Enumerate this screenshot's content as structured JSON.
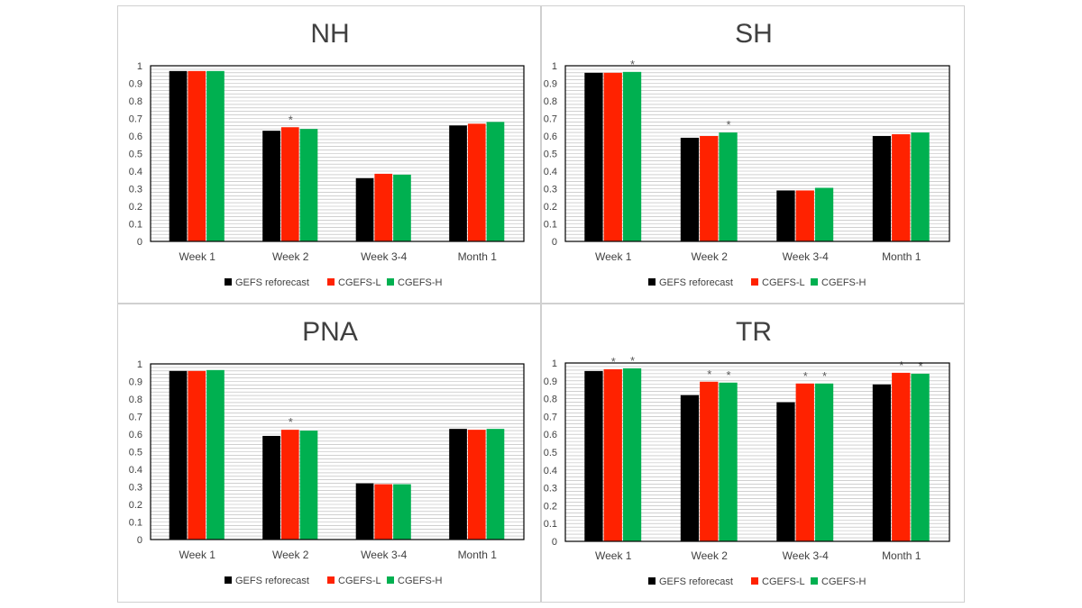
{
  "colors": {
    "gefs": "#000000",
    "cgefs_l": "#ff2200",
    "cgefs_h": "#00b050",
    "grid": "#b5b5b5",
    "asterisk": "#595959"
  },
  "legend": [
    "GEFS reforecast",
    "CGEFS-L",
    "CGEFS-H"
  ],
  "chart_data": [
    {
      "id": "nh",
      "type": "bar",
      "title": "NH",
      "categories": [
        "Week 1",
        "Week 2",
        "Week 3-4",
        "Month 1"
      ],
      "ylim": [
        0,
        1
      ],
      "yticks": [
        "0",
        "0.1",
        "0.2",
        "0.3",
        "0.4",
        "0.5",
        "0.6",
        "0.7",
        "0.8",
        "0.9",
        "1"
      ],
      "grid": true,
      "legend_position": "bottom",
      "series": [
        {
          "name": "GEFS reforecast",
          "values": [
            0.97,
            0.63,
            0.36,
            0.66
          ]
        },
        {
          "name": "CGEFS-L",
          "values": [
            0.97,
            0.65,
            0.385,
            0.67
          ]
        },
        {
          "name": "CGEFS-H",
          "values": [
            0.97,
            0.64,
            0.38,
            0.68
          ]
        }
      ],
      "annotations": [
        {
          "text": "*",
          "category": 1,
          "series": 1
        }
      ]
    },
    {
      "id": "sh",
      "type": "bar",
      "title": "SH",
      "categories": [
        "Week 1",
        "Week 2",
        "Week 3-4",
        "Month 1"
      ],
      "ylim": [
        0,
        1
      ],
      "yticks": [
        "0",
        "0.1",
        "0.2",
        "0.3",
        "0.4",
        "0.5",
        "0.6",
        "0.7",
        "0.8",
        "0.9",
        "1"
      ],
      "grid": true,
      "legend_position": "bottom",
      "series": [
        {
          "name": "GEFS reforecast",
          "values": [
            0.96,
            0.59,
            0.29,
            0.6
          ]
        },
        {
          "name": "CGEFS-L",
          "values": [
            0.96,
            0.6,
            0.29,
            0.61
          ]
        },
        {
          "name": "CGEFS-H",
          "values": [
            0.965,
            0.62,
            0.305,
            0.62
          ]
        }
      ],
      "annotations": [
        {
          "text": "*",
          "category": 0,
          "series": 2
        },
        {
          "text": "*",
          "category": 1,
          "series": 2
        }
      ]
    },
    {
      "id": "pna",
      "type": "bar",
      "title": "PNA",
      "categories": [
        "Week 1",
        "Week 2",
        "Week 3-4",
        "Month 1"
      ],
      "ylim": [
        0,
        1
      ],
      "yticks": [
        "0",
        "0.1",
        "0.2",
        "0.3",
        "0.4",
        "0.5",
        "0.6",
        "0.7",
        "0.8",
        "0.9",
        "1"
      ],
      "grid": true,
      "legend_position": "bottom",
      "series": [
        {
          "name": "GEFS reforecast",
          "values": [
            0.96,
            0.59,
            0.32,
            0.63
          ]
        },
        {
          "name": "CGEFS-L",
          "values": [
            0.96,
            0.625,
            0.315,
            0.625
          ]
        },
        {
          "name": "CGEFS-H",
          "values": [
            0.965,
            0.62,
            0.315,
            0.63
          ]
        }
      ],
      "annotations": [
        {
          "text": "*",
          "category": 1,
          "series": 1
        }
      ]
    },
    {
      "id": "tr",
      "type": "bar",
      "title": "TR",
      "categories": [
        "Week 1",
        "Week 2",
        "Week 3-4",
        "Month 1"
      ],
      "ylim": [
        0,
        1
      ],
      "yticks": [
        "0",
        "0.1",
        "0.2",
        "0.3",
        "0.4",
        "0.5",
        "0.6",
        "0.7",
        "0.8",
        "0.9",
        "1"
      ],
      "grid": true,
      "legend_position": "bottom",
      "series": [
        {
          "name": "GEFS reforecast",
          "values": [
            0.955,
            0.82,
            0.78,
            0.88
          ]
        },
        {
          "name": "CGEFS-L",
          "values": [
            0.965,
            0.895,
            0.885,
            0.945
          ]
        },
        {
          "name": "CGEFS-H",
          "values": [
            0.97,
            0.89,
            0.885,
            0.94
          ]
        }
      ],
      "annotations": [
        {
          "text": "*",
          "category": 0,
          "series": 1
        },
        {
          "text": "*",
          "category": 0,
          "series": 2
        },
        {
          "text": "*",
          "category": 1,
          "series": 1
        },
        {
          "text": "*",
          "category": 1,
          "series": 2
        },
        {
          "text": "*",
          "category": 2,
          "series": 1
        },
        {
          "text": "*",
          "category": 2,
          "series": 2
        },
        {
          "text": "*",
          "category": 3,
          "series": 1
        },
        {
          "text": "*",
          "category": 3,
          "series": 2
        }
      ]
    }
  ]
}
